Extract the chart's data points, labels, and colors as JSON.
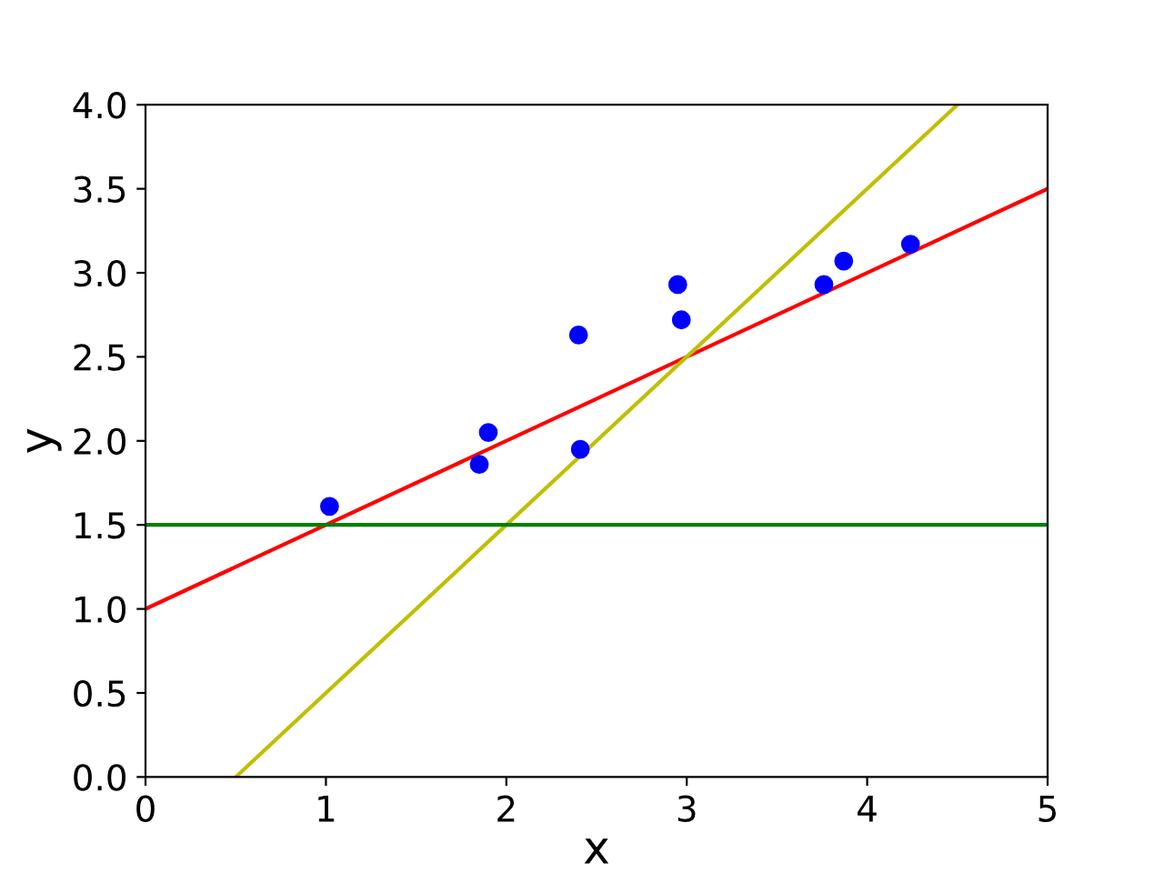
{
  "chart_data": {
    "type": "scatter",
    "xlabel": "x",
    "ylabel": "y",
    "grid": false,
    "legend": false,
    "xlim": [
      0,
      5
    ],
    "ylim": [
      0,
      4
    ],
    "xticks": [
      0,
      1,
      2,
      3,
      4,
      5
    ],
    "yticks": [
      {
        "value": 0,
        "label": "0.0"
      },
      {
        "value": 0.5,
        "label": "0.5"
      },
      {
        "value": 1,
        "label": "1.0"
      },
      {
        "value": 1.5,
        "label": "1.5"
      },
      {
        "value": 2,
        "label": "2.0"
      },
      {
        "value": 2.5,
        "label": "2.5"
      },
      {
        "value": 3,
        "label": "3.0"
      },
      {
        "value": 3.5,
        "label": "3.5"
      },
      {
        "value": 4,
        "label": "4.0"
      }
    ],
    "series": [
      {
        "marker": "circle",
        "color": "#0000ff",
        "x": [
          1.02,
          1.85,
          1.9,
          2.4,
          2.41,
          2.95,
          2.97,
          3.76,
          3.87,
          4.24
        ],
        "values": [
          1.61,
          1.86,
          2.05,
          2.63,
          1.95,
          2.93,
          2.72,
          2.93,
          3.07,
          3.17
        ]
      },
      {
        "type": "line",
        "color": "#ff0000",
        "x": [
          0,
          5
        ],
        "values": [
          1,
          3.5
        ]
      },
      {
        "type": "line",
        "color": "#bfbf00",
        "x": [
          0.5,
          4.5
        ],
        "values": [
          0,
          4
        ]
      },
      {
        "type": "line",
        "color": "#008000",
        "x": [
          0,
          5
        ],
        "values": [
          1.5,
          1.5
        ]
      }
    ]
  }
}
